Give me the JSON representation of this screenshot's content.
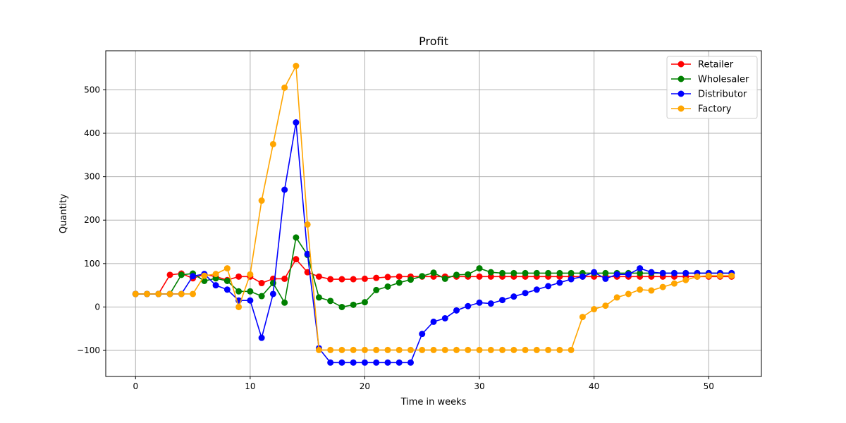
{
  "chart_data": {
    "type": "line",
    "title": "Profit",
    "xlabel": "Time in weeks",
    "ylabel": "Quantity",
    "xlim": [
      -2.6,
      54.6
    ],
    "ylim": [
      -160,
      590
    ],
    "xticks": [
      0,
      10,
      20,
      30,
      40,
      50
    ],
    "yticks": [
      -100,
      0,
      100,
      200,
      300,
      400,
      500
    ],
    "xtick_labels": [
      "0",
      "10",
      "20",
      "30",
      "40",
      "50"
    ],
    "ytick_labels": [
      "−100",
      "0",
      "100",
      "200",
      "300",
      "400",
      "500"
    ],
    "grid": true,
    "legend_position": "top-right",
    "x": [
      0,
      1,
      2,
      3,
      4,
      5,
      6,
      7,
      8,
      9,
      10,
      11,
      12,
      13,
      14,
      15,
      16,
      17,
      18,
      19,
      20,
      21,
      22,
      23,
      24,
      25,
      26,
      27,
      28,
      29,
      30,
      31,
      32,
      33,
      34,
      35,
      36,
      37,
      38,
      39,
      40,
      41,
      42,
      43,
      44,
      45,
      46,
      47,
      48,
      49,
      50,
      51,
      52
    ],
    "series": [
      {
        "name": "Retailer",
        "color": "#ff0000",
        "values": [
          30,
          30,
          30,
          74,
          77,
          66,
          75,
          70,
          62,
          70,
          70,
          55,
          65,
          65,
          110,
          80,
          70,
          64,
          64,
          64,
          65,
          67,
          69,
          70,
          70,
          70,
          70,
          70,
          70,
          70,
          70,
          70,
          70,
          70,
          70,
          70,
          70,
          70,
          70,
          70,
          70,
          70,
          70,
          70,
          70,
          70,
          70,
          70,
          70,
          70,
          70,
          70,
          70
        ]
      },
      {
        "name": "Wholesaler",
        "color": "#008000",
        "values": [
          30,
          30,
          30,
          30,
          74,
          77,
          60,
          66,
          60,
          36,
          36,
          25,
          55,
          10,
          160,
          120,
          22,
          14,
          0,
          5,
          11,
          39,
          47,
          56,
          63,
          71,
          79,
          65,
          74,
          75,
          89,
          80,
          78,
          78,
          78,
          78,
          78,
          78,
          78,
          78,
          78,
          78,
          78,
          78,
          78,
          78,
          78,
          78,
          78,
          78,
          78,
          78,
          78
        ]
      },
      {
        "name": "Distributor",
        "color": "#0000ff",
        "values": [
          30,
          30,
          30,
          30,
          30,
          71,
          76,
          50,
          40,
          15,
          15,
          -71,
          30,
          270,
          425,
          122,
          -95,
          -128,
          -128,
          -128,
          -128,
          -128,
          -128,
          -128,
          -128,
          -62,
          -34,
          -26,
          -8,
          2,
          10,
          8,
          16,
          24,
          32,
          40,
          48,
          56,
          64,
          70,
          80,
          65,
          75,
          75,
          89,
          80,
          78,
          78,
          78,
          78,
          78,
          78,
          78
        ]
      },
      {
        "name": "Factory",
        "color": "#ffa500",
        "values": [
          30,
          30,
          30,
          30,
          30,
          30,
          72,
          76,
          89,
          0,
          75,
          245,
          375,
          505,
          555,
          190,
          -99,
          -99,
          -99,
          -99,
          -99,
          -99,
          -99,
          -99,
          -99,
          -99,
          -99,
          -99,
          -99,
          -99,
          -99,
          -99,
          -99,
          -99,
          -99,
          -99,
          -99,
          -99,
          -99,
          -23,
          -5,
          3,
          22,
          30,
          40,
          38,
          46,
          54,
          62,
          70,
          72,
          72,
          72
        ]
      }
    ]
  }
}
